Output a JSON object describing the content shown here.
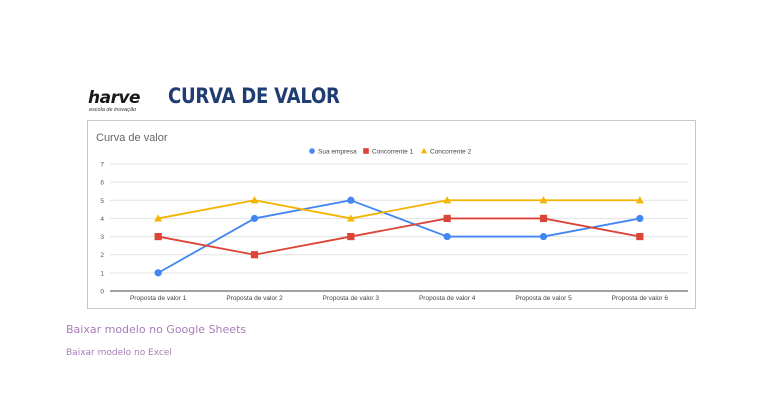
{
  "brand": {
    "name": "harve",
    "tagline": "escola de inovação"
  },
  "page": {
    "title": "CURVA DE VALOR"
  },
  "links": [
    {
      "label": "Baixar modelo no Google Sheets"
    },
    {
      "label": "Baixar modelo no Excel"
    }
  ],
  "chart_data": {
    "type": "line",
    "title": "Curva de valor",
    "categories": [
      "Proposta de valor 1",
      "Proposta de valor 2",
      "Proposta de valor 3",
      "Proposta de valor 4",
      "Proposta de valor 5",
      "Proposta de valor 6"
    ],
    "series": [
      {
        "name": "Sua empresa",
        "values": [
          1,
          4,
          5,
          3,
          3,
          4
        ],
        "color": "#4285f4",
        "marker": "circle"
      },
      {
        "name": "Concorrente 1",
        "values": [
          3,
          2,
          3,
          4,
          4,
          3
        ],
        "color": "#db4437",
        "marker": "square"
      },
      {
        "name": "Concorrente 2",
        "values": [
          4,
          5,
          4,
          5,
          5,
          5
        ],
        "color": "#f4b400",
        "marker": "triangle"
      }
    ],
    "ylim": [
      0,
      7
    ],
    "yticks": [
      "0",
      "1",
      "2",
      "3",
      "4",
      "5",
      "6",
      "7"
    ],
    "grid": true,
    "legend_position": "top"
  }
}
